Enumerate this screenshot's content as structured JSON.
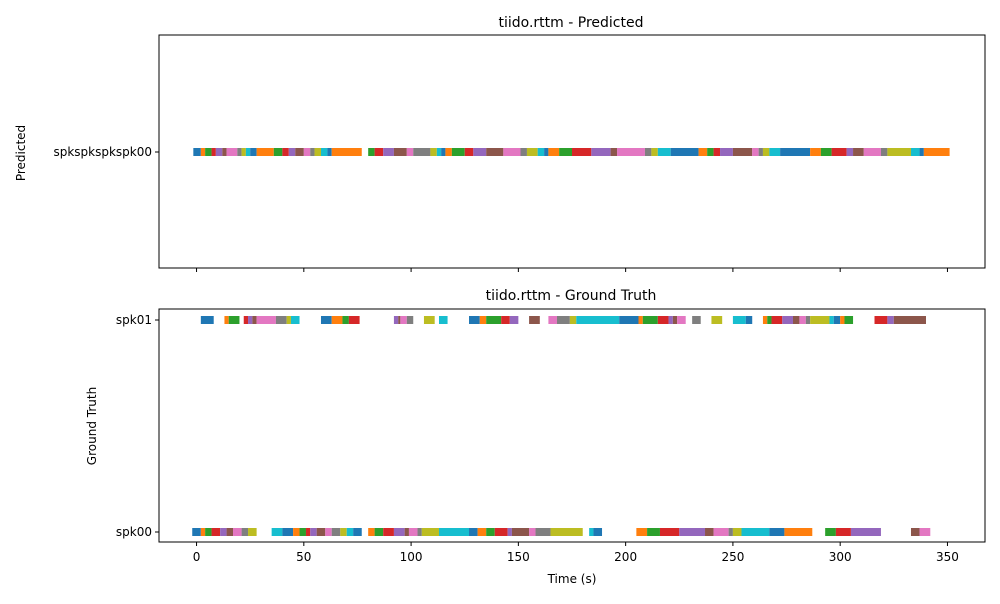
{
  "chart_data": [
    {
      "type": "timeline",
      "title": "tiido.rttm - Predicted",
      "xlabel": "",
      "ylabel": "Predicted",
      "xlim": [
        -17.5,
        367.5
      ],
      "xticks": [
        0,
        50,
        100,
        150,
        200,
        250,
        300,
        350
      ],
      "show_xtick_labels": false,
      "yticks": [
        "spkspkspkspk00"
      ],
      "tracks": [
        {
          "name": "spkspkspkspk00",
          "segments": [
            [
              -1.5,
              2
            ],
            [
              2,
              4
            ],
            [
              4,
              7
            ],
            [
              7,
              9
            ],
            [
              9,
              12
            ],
            [
              12,
              14
            ],
            [
              14,
              19
            ],
            [
              19,
              21
            ],
            [
              21,
              23
            ],
            [
              23,
              25
            ],
            [
              25,
              28
            ],
            [
              28,
              36
            ],
            [
              36,
              40
            ],
            [
              40,
              43
            ],
            [
              43,
              46
            ],
            [
              46,
              50
            ],
            [
              50,
              53
            ],
            [
              53,
              55
            ],
            [
              55,
              58
            ],
            [
              58,
              61
            ],
            [
              61,
              63
            ],
            [
              63,
              77
            ],
            [
              80,
              83
            ],
            [
              83,
              87
            ],
            [
              87,
              92
            ],
            [
              92,
              98
            ],
            [
              98,
              101
            ],
            [
              101,
              109
            ],
            [
              109,
              112
            ],
            [
              112,
              114
            ],
            [
              114,
              116
            ],
            [
              116,
              119
            ],
            [
              119,
              125
            ],
            [
              125,
              129
            ],
            [
              129,
              135
            ],
            [
              135,
              143
            ],
            [
              143,
              151
            ],
            [
              151,
              154
            ],
            [
              154,
              159
            ],
            [
              159,
              162
            ],
            [
              162,
              164
            ],
            [
              164,
              169
            ],
            [
              169,
              175
            ],
            [
              175,
              184
            ],
            [
              184,
              193
            ],
            [
              193,
              196
            ],
            [
              196,
              209
            ],
            [
              209,
              212
            ],
            [
              212,
              215
            ],
            [
              215,
              221
            ],
            [
              221,
              234
            ],
            [
              234,
              238
            ],
            [
              238,
              241
            ],
            [
              241,
              244
            ],
            [
              244,
              250
            ],
            [
              250,
              259
            ],
            [
              259,
              262
            ],
            [
              262,
              264
            ],
            [
              264,
              267
            ],
            [
              267,
              272
            ],
            [
              272,
              286
            ],
            [
              286,
              291
            ],
            [
              291,
              296
            ],
            [
              296,
              303
            ],
            [
              303,
              306
            ],
            [
              306,
              311
            ],
            [
              311,
              319
            ],
            [
              319,
              322
            ],
            [
              322,
              333
            ],
            [
              333,
              337
            ],
            [
              337,
              339
            ],
            [
              339,
              351
            ]
          ]
        }
      ]
    },
    {
      "type": "timeline",
      "title": "tiido.rttm - Ground Truth",
      "xlabel": "Time (s)",
      "ylabel": "Ground Truth",
      "xlim": [
        -17.5,
        367.5
      ],
      "xticks": [
        0,
        50,
        100,
        150,
        200,
        250,
        300,
        350
      ],
      "show_xtick_labels": true,
      "yticks": [
        "spk01",
        "spk00"
      ],
      "tracks": [
        {
          "name": "spk01",
          "segments": [
            [
              2,
              8
            ],
            [
              13,
              15
            ],
            [
              15,
              20
            ],
            [
              22,
              24
            ],
            [
              24,
              26
            ],
            [
              26,
              28
            ],
            [
              28,
              37
            ],
            [
              37,
              42
            ],
            [
              42,
              44
            ],
            [
              44,
              48
            ],
            [
              58,
              63
            ],
            [
              63,
              68
            ],
            [
              68,
              71
            ],
            [
              71,
              76
            ],
            [
              92,
              94
            ],
            [
              94,
              95
            ],
            [
              95,
              98
            ],
            [
              98,
              101
            ],
            [
              106,
              111
            ],
            [
              113,
              117
            ],
            [
              127,
              132
            ],
            [
              132,
              135
            ],
            [
              135,
              142
            ],
            [
              142,
              146
            ],
            [
              146,
              150
            ],
            [
              155,
              160
            ],
            [
              164,
              168
            ],
            [
              168,
              174
            ],
            [
              174,
              177
            ],
            [
              177,
              197
            ],
            [
              197,
              206
            ],
            [
              206,
              208
            ],
            [
              208,
              215
            ],
            [
              215,
              220
            ],
            [
              220,
              222
            ],
            [
              222,
              224
            ],
            [
              224,
              228
            ],
            [
              231,
              235
            ],
            [
              240,
              245
            ],
            [
              250,
              256
            ],
            [
              256,
              259
            ],
            [
              264,
              266
            ],
            [
              266,
              268
            ],
            [
              268,
              273
            ],
            [
              273,
              278
            ],
            [
              278,
              281
            ],
            [
              281,
              284
            ],
            [
              284,
              286
            ],
            [
              286,
              295
            ],
            [
              295,
              297
            ],
            [
              297,
              300
            ],
            [
              300,
              302
            ],
            [
              302,
              306
            ],
            [
              316,
              322
            ],
            [
              322,
              325
            ],
            [
              325,
              340
            ]
          ]
        },
        {
          "name": "spk00",
          "segments": [
            [
              -2,
              2
            ],
            [
              2,
              4
            ],
            [
              4,
              7
            ],
            [
              7,
              11
            ],
            [
              11,
              14
            ],
            [
              14,
              17
            ],
            [
              17,
              21
            ],
            [
              21,
              24
            ],
            [
              24,
              28
            ],
            [
              35,
              40
            ],
            [
              40,
              45
            ],
            [
              45,
              48
            ],
            [
              48,
              51
            ],
            [
              51,
              53
            ],
            [
              53,
              56
            ],
            [
              56,
              60
            ],
            [
              60,
              63
            ],
            [
              63,
              67
            ],
            [
              67,
              70
            ],
            [
              70,
              73
            ],
            [
              73,
              77
            ],
            [
              80,
              83
            ],
            [
              83,
              87
            ],
            [
              87,
              92
            ],
            [
              92,
              97
            ],
            [
              97,
              99
            ],
            [
              99,
              103
            ],
            [
              103,
              105
            ],
            [
              105,
              113
            ],
            [
              113,
              127
            ],
            [
              127,
              131
            ],
            [
              131,
              135
            ],
            [
              135,
              139
            ],
            [
              139,
              145
            ],
            [
              145,
              147
            ],
            [
              147,
              155
            ],
            [
              155,
              158
            ],
            [
              158,
              165
            ],
            [
              165,
              180
            ],
            [
              183,
              185
            ],
            [
              185,
              189
            ],
            [
              205,
              210
            ],
            [
              210,
              216
            ],
            [
              216,
              225
            ],
            [
              225,
              237
            ],
            [
              237,
              241
            ],
            [
              241,
              248
            ],
            [
              248,
              250
            ],
            [
              250,
              254
            ],
            [
              254,
              267
            ],
            [
              267,
              274
            ],
            [
              274,
              287
            ],
            [
              293,
              298
            ],
            [
              298,
              305
            ],
            [
              305,
              319
            ],
            [
              333,
              337
            ],
            [
              337,
              342
            ]
          ]
        }
      ]
    }
  ],
  "palette": [
    "#1f77b4",
    "#ff7f0e",
    "#2ca02c",
    "#d62728",
    "#9467bd",
    "#8c564b",
    "#e377c2",
    "#7f7f7f",
    "#bcbd22",
    "#17becf"
  ]
}
